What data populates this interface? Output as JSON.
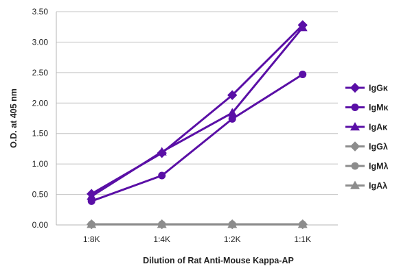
{
  "chart_data": {
    "type": "line",
    "title": "",
    "xlabel": "Dilution of Rat Anti-Mouse Kappa-AP",
    "ylabel": "O.D. at 405 nm",
    "ylim": [
      0,
      3.5
    ],
    "ytick_step": 0.5,
    "yticks": [
      "0.00",
      "0.50",
      "1.00",
      "1.50",
      "2.00",
      "2.50",
      "3.00",
      "3.50"
    ],
    "categories": [
      "1:8K",
      "1:4K",
      "1:2K",
      "1:1K"
    ],
    "grid": "horizontal",
    "legend_position": "right",
    "series": [
      {
        "name": "IgGκ",
        "color": "#5a0fa6",
        "marker": "diamond",
        "values": [
          0.51,
          1.18,
          2.13,
          3.28
        ]
      },
      {
        "name": "IgMκ",
        "color": "#5a0fa6",
        "marker": "circle",
        "values": [
          0.39,
          0.81,
          1.74,
          2.47
        ]
      },
      {
        "name": "IgAκ",
        "color": "#5a0fa6",
        "marker": "triangle",
        "values": [
          0.47,
          1.2,
          1.84,
          3.24
        ]
      },
      {
        "name": "IgGλ",
        "color": "#8c8c8c",
        "marker": "diamond",
        "values": [
          0.01,
          0.01,
          0.01,
          0.01
        ]
      },
      {
        "name": "IgMλ",
        "color": "#8c8c8c",
        "marker": "circle",
        "values": [
          0.01,
          0.01,
          0.01,
          0.01
        ]
      },
      {
        "name": "IgAλ",
        "color": "#8c8c8c",
        "marker": "triangle",
        "values": [
          0.01,
          0.01,
          0.01,
          0.01
        ]
      }
    ]
  }
}
